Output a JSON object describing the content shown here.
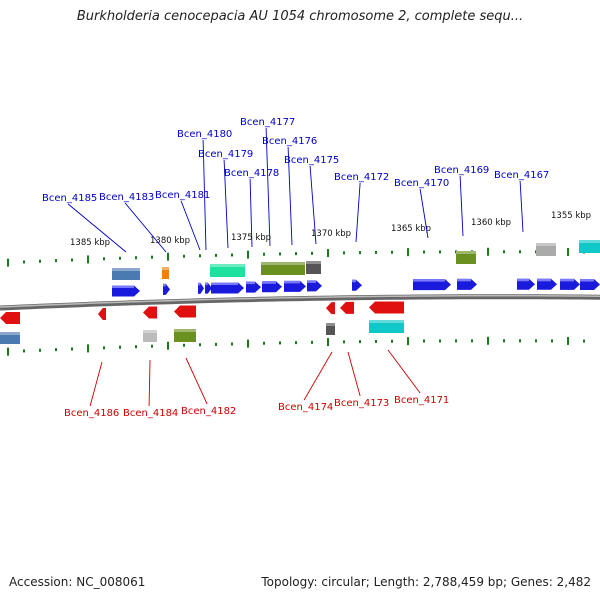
{
  "title": "Burkholderia cenocepacia AU 1054 chromosome 2, complete sequ...",
  "footer": {
    "accession": "Accession: NC_008061",
    "topology": "Topology: circular; Length: 2,788,459 bp; Genes: 2,482"
  },
  "colors": {
    "forward_label": "#0000c8",
    "reverse_label": "#cc0000",
    "forward_gene": "#1a1adc",
    "reverse_gene": "#e01010",
    "tick": "#1a7a1a",
    "backbone": "#888888"
  },
  "ruler_labels": [
    "1385 kbp",
    "1380 kbp",
    "1375 kbp",
    "1370 kbp",
    "1365 kbp",
    "1360 kbp",
    "1355 kbp"
  ],
  "forward_labels": [
    "Bcen_4185",
    "Bcen_4183",
    "Bcen_4181",
    "Bcen_4180",
    "Bcen_4179",
    "Bcen_4178",
    "Bcen_4177",
    "Bcen_4176",
    "Bcen_4175",
    "Bcen_4172",
    "Bcen_4170",
    "Bcen_4169",
    "Bcen_4167"
  ],
  "reverse_labels": [
    "Bcen_4186",
    "Bcen_4184",
    "Bcen_4182",
    "Bcen_4174",
    "Bcen_4173",
    "Bcen_4171"
  ]
}
